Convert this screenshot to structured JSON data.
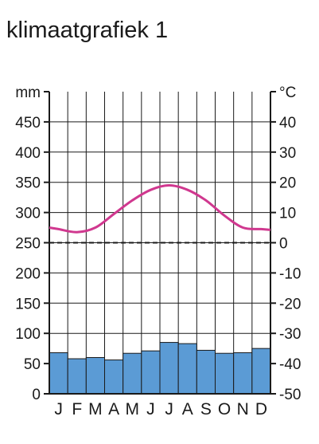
{
  "title": "klimaatgrafiek 1",
  "colors": {
    "bar_fill": "#5b9bd5",
    "temperature_line": "#d0388f",
    "grid": "#1a1a1a",
    "zero_line": "#1a1a1a"
  },
  "chart_data": {
    "type": "bar",
    "title": "klimaatgrafiek 1",
    "categories": [
      "J",
      "F",
      "M",
      "A",
      "M",
      "J",
      "J",
      "A",
      "S",
      "O",
      "N",
      "D"
    ],
    "left_axis": {
      "unit_label": "mm",
      "ylim": [
        0,
        500
      ],
      "ticks": [
        "0",
        "50",
        "100",
        "150",
        "200",
        "250",
        "300",
        "350",
        "400",
        "450"
      ]
    },
    "right_axis": {
      "unit_label": "°C",
      "ylim": [
        -50,
        50
      ],
      "ticks": [
        "-50",
        "-40",
        "-30",
        "-20",
        "-10",
        "0",
        "10",
        "20",
        "30",
        "40"
      ]
    },
    "series": [
      {
        "type": "bar",
        "axis": "left",
        "values": [
          68,
          58,
          60,
          56,
          67,
          71,
          85,
          83,
          72,
          67,
          68,
          75
        ]
      },
      {
        "type": "line",
        "axis": "right",
        "values": [
          4.5,
          3.5,
          5,
          9.5,
          14,
          17.5,
          19,
          17.5,
          14,
          9,
          5,
          4.5
        ]
      }
    ],
    "reference_line": {
      "axis": "right",
      "value": 0,
      "style": "dashed"
    },
    "grid": true
  }
}
